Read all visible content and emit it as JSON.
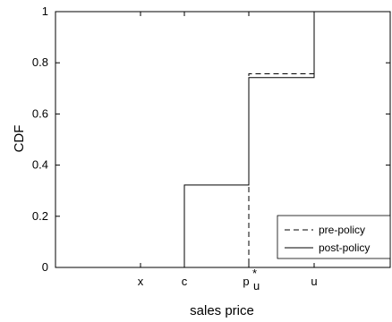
{
  "chart_data": {
    "type": "line",
    "title": "",
    "xlabel": "sales price",
    "ylabel": "CDF",
    "ylim": [
      0,
      1
    ],
    "yticks": [
      0,
      0.2,
      0.4,
      0.6,
      0.8,
      1
    ],
    "ytick_labels": [
      "0",
      "0.2",
      "0.4",
      "0.6",
      "0.8",
      "1"
    ],
    "x_categories": [
      "x",
      "c",
      "p_u^*",
      "u"
    ],
    "xtick_labels": [
      "x",
      "c",
      "p",
      "u"
    ],
    "xtick_sub": "u",
    "xtick_sup": "*",
    "grid": false,
    "legend": {
      "position": "bottom-right",
      "entries": [
        "pre-policy",
        "post-policy"
      ]
    },
    "series": [
      {
        "name": "pre-policy",
        "style": "dashed",
        "points": [
          [
            "start",
            0
          ],
          [
            "p_u^*",
            0
          ],
          [
            "p_u^*",
            0.757
          ],
          [
            "u",
            0.757
          ],
          [
            "u",
            1
          ],
          [
            "end",
            1
          ]
        ]
      },
      {
        "name": "post-policy",
        "style": "solid",
        "points": [
          [
            "start",
            0
          ],
          [
            "c",
            0
          ],
          [
            "c",
            0.322
          ],
          [
            "p_u^*",
            0.322
          ],
          [
            "p_u^*",
            0.742
          ],
          [
            "u",
            0.742
          ],
          [
            "u",
            1
          ],
          [
            "end",
            1
          ]
        ]
      }
    ]
  }
}
